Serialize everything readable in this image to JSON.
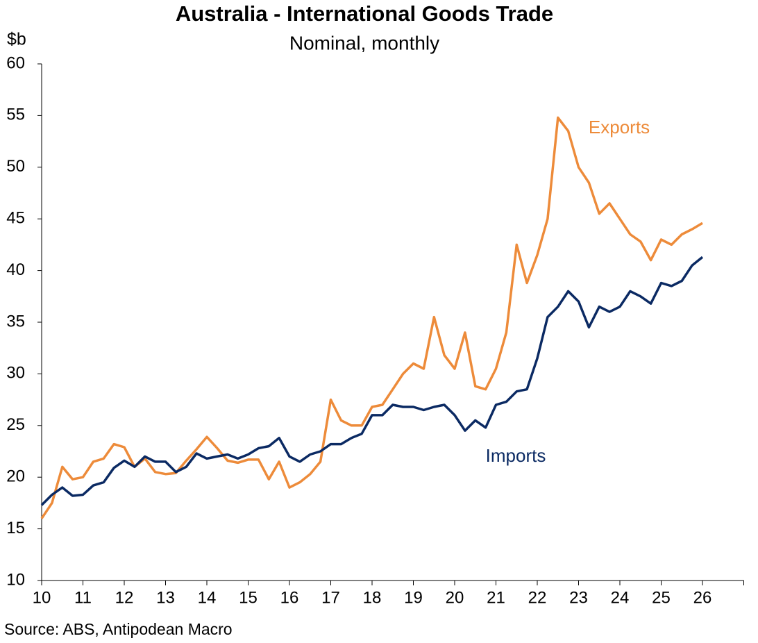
{
  "chart_data": {
    "type": "line",
    "title": "Australia - International Goods Trade",
    "subtitle": "Nominal, monthly",
    "ylabel": "$b",
    "source": "Source: ABS, Antipodean Macro",
    "x": [
      10,
      10.25,
      10.5,
      10.75,
      11,
      11.25,
      11.5,
      11.75,
      12,
      12.25,
      12.5,
      12.75,
      13,
      13.25,
      13.5,
      13.75,
      14,
      14.25,
      14.5,
      14.75,
      15,
      15.25,
      15.5,
      15.75,
      16,
      16.25,
      16.5,
      16.75,
      17,
      17.25,
      17.5,
      17.75,
      18,
      18.25,
      18.5,
      18.75,
      19,
      19.25,
      19.5,
      19.75,
      20,
      20.25,
      20.5,
      20.75,
      21,
      21.25,
      21.5,
      21.75,
      22,
      22.25,
      22.5,
      22.75,
      23,
      23.25,
      23.5,
      23.75,
      24,
      24.25,
      24.5,
      24.75,
      25,
      25.25,
      25.5,
      25.75,
      26
    ],
    "series": [
      {
        "name": "Exports",
        "color": "#ed8b3a",
        "values": [
          16.0,
          17.5,
          21.0,
          19.8,
          20.0,
          21.5,
          21.8,
          23.2,
          22.9,
          21.0,
          21.8,
          20.5,
          20.3,
          20.4,
          21.6,
          22.7,
          23.9,
          22.8,
          21.6,
          21.4,
          21.7,
          21.7,
          19.8,
          21.5,
          19.0,
          19.5,
          20.3,
          21.5,
          27.5,
          25.5,
          25.0,
          25.0,
          26.8,
          27.0,
          28.5,
          30.0,
          31.0,
          30.5,
          35.5,
          31.8,
          30.5,
          34.0,
          28.8,
          28.5,
          30.5,
          34.0,
          42.5,
          38.8,
          41.5,
          45.0,
          54.8,
          53.5,
          50.0,
          48.5,
          45.5,
          46.5,
          45.0,
          43.5,
          42.8,
          41.0,
          43.0,
          42.5,
          43.5,
          44.0,
          44.6
        ]
      },
      {
        "name": "Imports",
        "color": "#0b2a63",
        "values": [
          17.3,
          18.3,
          19.0,
          18.2,
          18.3,
          19.2,
          19.5,
          20.9,
          21.6,
          21.0,
          22.0,
          21.5,
          21.5,
          20.5,
          21.0,
          22.3,
          21.8,
          22.0,
          22.2,
          21.8,
          22.2,
          22.8,
          23.0,
          23.8,
          22.0,
          21.5,
          22.2,
          22.5,
          23.2,
          23.2,
          23.8,
          24.2,
          26.0,
          26.0,
          27.0,
          26.8,
          26.8,
          26.5,
          26.8,
          27.0,
          26.0,
          24.5,
          25.5,
          24.8,
          27.0,
          27.3,
          28.3,
          28.5,
          31.5,
          35.5,
          36.5,
          38.0,
          37.0,
          34.5,
          36.5,
          36.0,
          36.5,
          38.0,
          37.5,
          36.8,
          38.8,
          38.5,
          39.0,
          40.5,
          41.3
        ]
      }
    ],
    "xlim": [
      10,
      27
    ],
    "xticks": [
      10,
      11,
      12,
      13,
      14,
      15,
      16,
      17,
      18,
      19,
      20,
      21,
      22,
      23,
      24,
      25,
      26
    ],
    "ylim": [
      10,
      60
    ],
    "yticks": [
      10,
      15,
      20,
      25,
      30,
      35,
      40,
      45,
      50,
      55,
      60
    ]
  }
}
